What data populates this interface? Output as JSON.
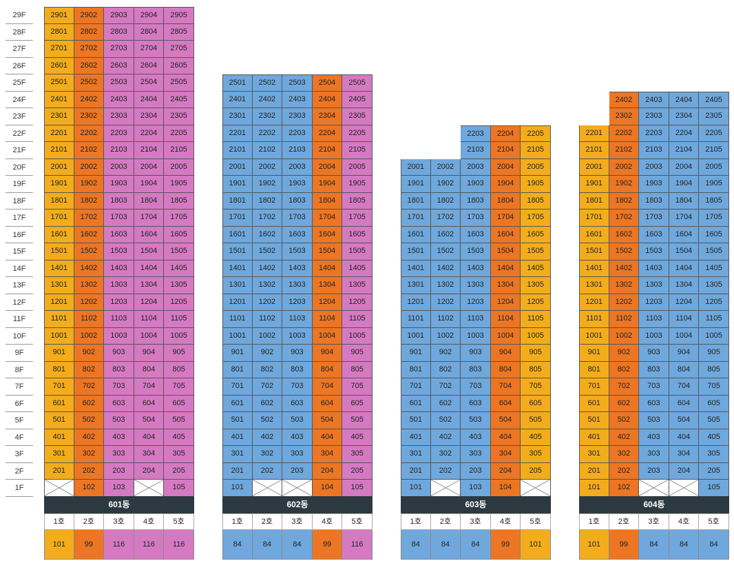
{
  "floors": [
    "29F",
    "28F",
    "27F",
    "26F",
    "25F",
    "24F",
    "23F",
    "22F",
    "21F",
    "20F",
    "19F",
    "18F",
    "17F",
    "16F",
    "15F",
    "14F",
    "13F",
    "12F",
    "11F",
    "10F",
    "9F",
    "8F",
    "7F",
    "6F",
    "5F",
    "4F",
    "3F",
    "2F",
    "1F"
  ],
  "colors": {
    "y": "#f3ad1c",
    "o": "#ec7623",
    "p": "#d57ac2",
    "b": "#6fa8dc"
  },
  "buildings": [
    {
      "name": "601동",
      "top_floor": 29,
      "col_colors": [
        "y",
        "o",
        "p",
        "p",
        "p"
      ],
      "first_floor": [
        "x",
        "102",
        "103",
        "x",
        "105"
      ],
      "units": [
        "1호",
        "2호",
        "3호",
        "4호",
        "5호"
      ],
      "areas": [
        "101",
        "99",
        "116",
        "116",
        "116"
      ],
      "partial_top": []
    },
    {
      "name": "602동",
      "top_floor": 25,
      "col_colors": [
        "b",
        "b",
        "b",
        "o",
        "p"
      ],
      "first_floor": [
        "101",
        "x",
        "x",
        "104",
        "105"
      ],
      "units": [
        "1호",
        "2호",
        "3호",
        "4호",
        "5호"
      ],
      "areas": [
        "84",
        "84",
        "84",
        "99",
        "116"
      ],
      "partial_top": []
    },
    {
      "name": "603동",
      "top_floor": 22,
      "col_colors": [
        "b",
        "b",
        "b",
        "o",
        "y"
      ],
      "first_floor": [
        "101",
        "x",
        "103",
        "104",
        "x"
      ],
      "units": [
        "1호",
        "2호",
        "3호",
        "4호",
        "5호"
      ],
      "areas": [
        "84",
        "84",
        "84",
        "99",
        "101"
      ],
      "partial_top": [
        {
          "floor": 22,
          "start": 2
        },
        {
          "floor": 21,
          "start": 2
        }
      ]
    },
    {
      "name": "604동",
      "top_floor": 24,
      "col_colors": [
        "y",
        "o",
        "b",
        "b",
        "b"
      ],
      "first_floor": [
        "101",
        "102",
        "x",
        "x",
        "105"
      ],
      "units": [
        "1호",
        "2호",
        "3호",
        "4호",
        "5호"
      ],
      "areas": [
        "101",
        "99",
        "84",
        "84",
        "84"
      ],
      "partial_top": [
        {
          "floor": 24,
          "start": 1
        },
        {
          "floor": 23,
          "start": 1
        }
      ]
    }
  ]
}
